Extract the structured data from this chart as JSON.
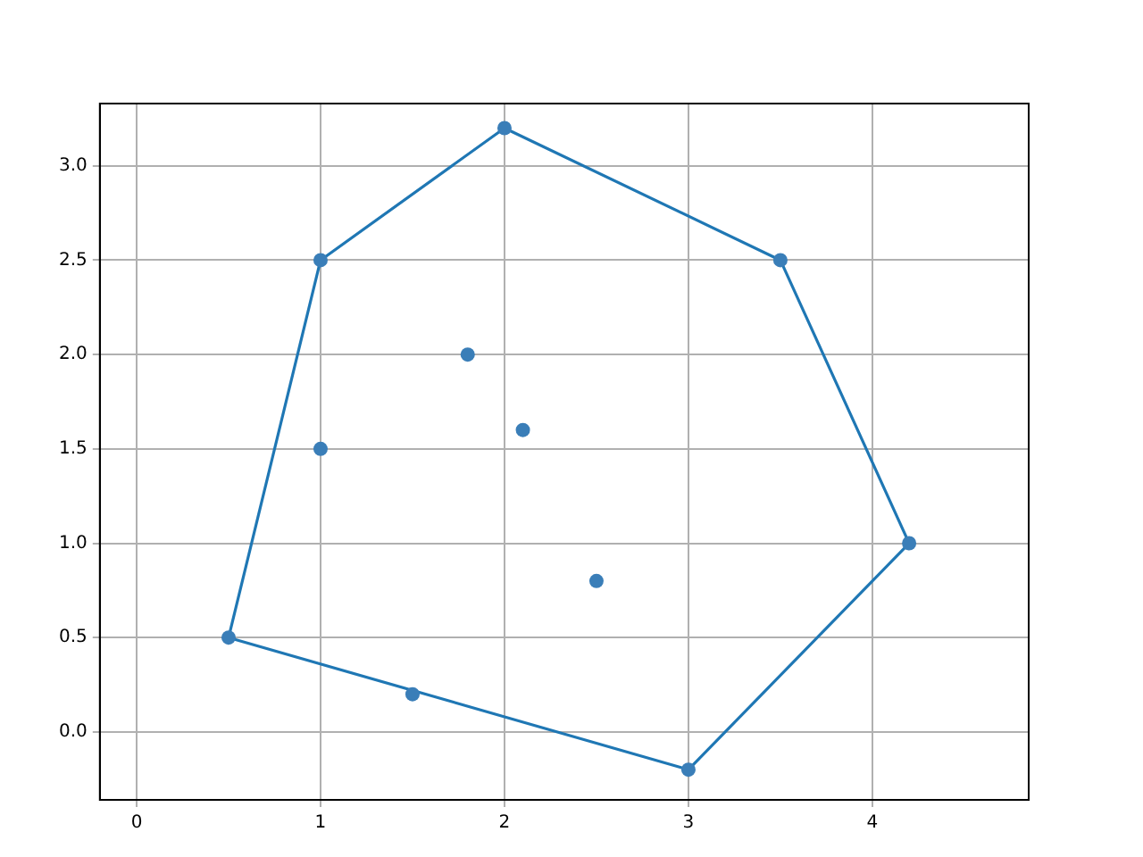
{
  "chart_data": {
    "type": "scatter",
    "xlim": [
      -0.2,
      4.85
    ],
    "ylim": [
      -0.36,
      3.33
    ],
    "xticks": [
      0,
      1,
      2,
      3,
      4
    ],
    "yticks": [
      {
        "value": 0,
        "label": "0.0"
      },
      {
        "value": 0.5,
        "label": "0.5"
      },
      {
        "value": 1,
        "label": "1.0"
      },
      {
        "value": 1.5,
        "label": "1.5"
      },
      {
        "value": 2,
        "label": "2.0"
      },
      {
        "value": 2.5,
        "label": "2.5"
      },
      {
        "value": 3,
        "label": "3.0"
      }
    ],
    "grid": true,
    "legend": false,
    "series": [
      {
        "color": "#3a7eb8",
        "marker": "circle",
        "x": [
          0.5,
          1,
          2,
          3.5,
          4.2,
          3,
          1.5,
          1,
          1.8,
          2.1,
          2.5
        ],
        "values": [
          0.5,
          2.5,
          3.2,
          2.5,
          1.0,
          -0.2,
          0.2,
          1.5,
          2.0,
          1.6,
          0.8
        ]
      },
      {
        "type": "line",
        "color": "#1f77b4",
        "marker": "none",
        "line_style": "solid",
        "x": [
          0.5,
          1,
          2,
          3.5,
          4.2
        ],
        "values": [
          0.5,
          2.5,
          3.2,
          2.5,
          1.0
        ]
      },
      {
        "type": "line",
        "color": "#1f77b4",
        "marker": "none",
        "line_style": "solid",
        "x": [
          0.5,
          3,
          4.2
        ],
        "values": [
          0.5,
          -0.2,
          1.0
        ]
      }
    ]
  }
}
